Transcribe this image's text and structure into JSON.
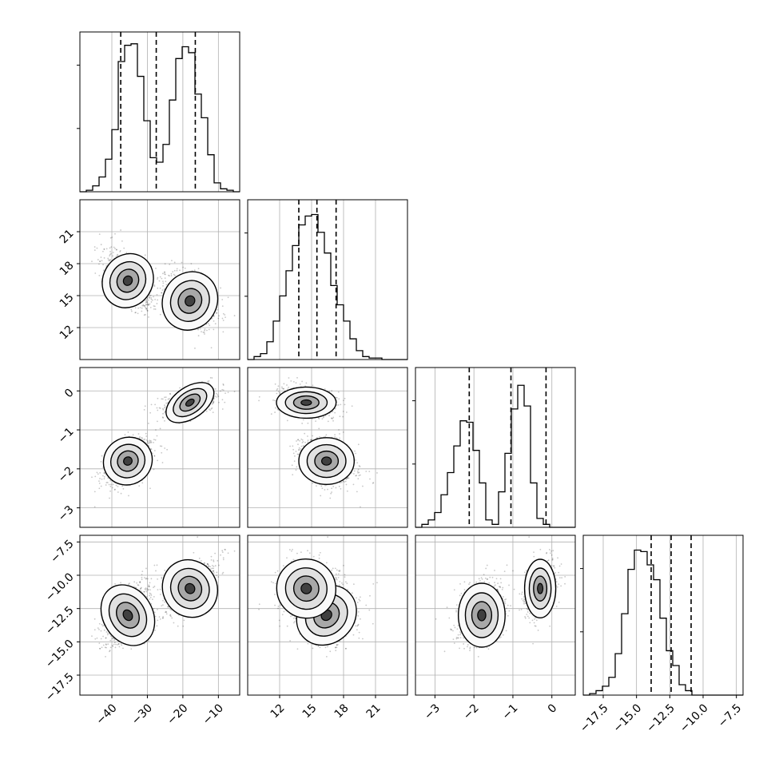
{
  "chart_data": {
    "type": "corner",
    "grid": true,
    "quantile_lines": "dashed",
    "ticks": {
      "p0": [
        "−40",
        "−30",
        "−20",
        "−10"
      ],
      "p1": [
        "12",
        "15",
        "18",
        "21"
      ],
      "p2": [
        "−3",
        "−2",
        "−1",
        "0"
      ],
      "p3": [
        "−17.5",
        "−15.0",
        "−12.5",
        "−10.0",
        "−7.5"
      ]
    },
    "params": [
      {
        "range": [
          -49,
          -4
        ],
        "ticks": [
          -40,
          -30,
          -20,
          -10
        ],
        "quantiles": [
          -37.5,
          -27.5,
          -16.5
        ],
        "histogram": [
          0,
          0.01,
          0.04,
          0.1,
          0.22,
          0.42,
          0.88,
          0.99,
          1.0,
          0.78,
          0.48,
          0.23,
          0.2,
          0.32,
          0.62,
          0.9,
          0.98,
          0.94,
          0.66,
          0.5,
          0.25,
          0.06,
          0.02,
          0.01,
          0
        ]
      },
      {
        "range": [
          9,
          24
        ],
        "ticks": [
          12,
          15,
          18,
          21
        ],
        "quantiles": [
          13.8,
          15.5,
          17.3
        ],
        "histogram": [
          0,
          0.02,
          0.04,
          0.12,
          0.26,
          0.43,
          0.6,
          0.77,
          0.91,
          0.97,
          0.98,
          0.86,
          0.72,
          0.5,
          0.37,
          0.26,
          0.14,
          0.06,
          0.02,
          0.01,
          0.01,
          0,
          0,
          0,
          0
        ]
      },
      {
        "range": [
          -3.5,
          0.6
        ],
        "ticks": [
          -3,
          -2,
          -1,
          0
        ],
        "quantiles": [
          -2.12,
          -1.05,
          -0.15
        ],
        "histogram": [
          0,
          0.02,
          0.05,
          0.1,
          0.22,
          0.37,
          0.55,
          0.72,
          0.71,
          0.52,
          0.3,
          0.05,
          0.02,
          0.24,
          0.5,
          0.8,
          0.96,
          0.82,
          0.3,
          0.06,
          0.02,
          0,
          0,
          0,
          0
        ]
      },
      {
        "range": [
          -19,
          -7
        ],
        "ticks": [
          -17.5,
          -15.0,
          -12.5,
          -10.0,
          -7.5
        ],
        "quantiles": [
          -13.9,
          -12.4,
          -10.9
        ],
        "histogram": [
          0,
          0.01,
          0.03,
          0.06,
          0.12,
          0.28,
          0.55,
          0.85,
          0.98,
          0.97,
          0.88,
          0.78,
          0.52,
          0.3,
          0.2,
          0.07,
          0.03,
          0,
          0,
          0,
          0,
          0,
          0,
          0,
          0
        ]
      }
    ],
    "modes": [
      {
        "center": [
          -35.5,
          16.4,
          -1.8,
          -13.0
        ],
        "spread": [
          3.5,
          1.3,
          0.3,
          1.2
        ],
        "weight": 0.55
      },
      {
        "center": [
          -18.0,
          14.5,
          -0.3,
          -11.0
        ],
        "spread": [
          3.8,
          1.4,
          0.2,
          1.1
        ],
        "weight": 0.45
      }
    ]
  }
}
